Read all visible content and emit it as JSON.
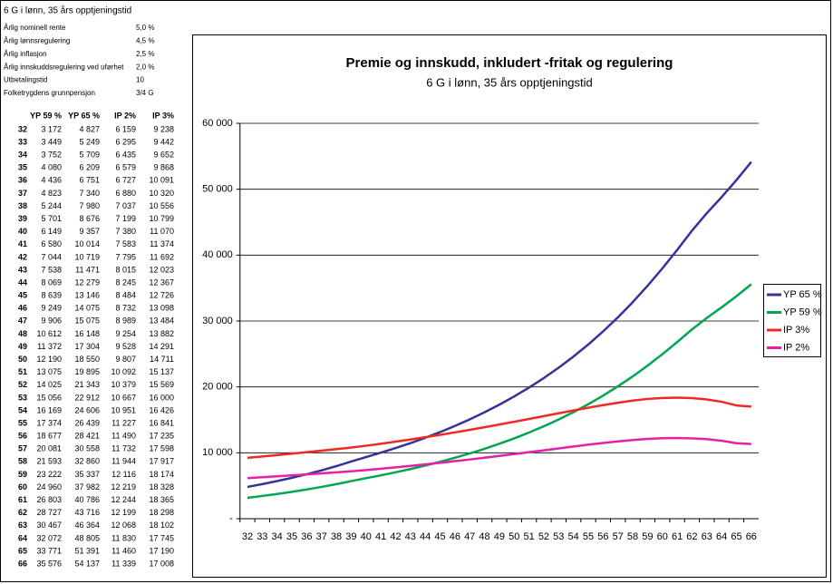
{
  "params": {
    "title": "6 G i lønn, 35 års opptjeningstid",
    "rows": [
      [
        "Årlig nominell rente",
        "5,0 %"
      ],
      [
        "Årlig lønnsregulering",
        "4,5 %"
      ],
      [
        "Årlig inflasjon",
        "2,5 %"
      ],
      [
        "Årlig innskuddsregulering ved uførhet",
        "2,0 %"
      ],
      [
        "Utbetalingstid",
        "10"
      ],
      [
        "Folketrygdens grunnpensjon",
        "3/4 G"
      ]
    ]
  },
  "table": {
    "header": [
      "YP 59 %",
      "YP 65 %",
      "IP 2%",
      "IP 3%"
    ],
    "rows": [
      [
        "32",
        "3 172",
        "4 827",
        "6 159",
        "9 238"
      ],
      [
        "33",
        "3 449",
        "5 249",
        "6 295",
        "9 442"
      ],
      [
        "34",
        "3 752",
        "5 709",
        "6 435",
        "9 652"
      ],
      [
        "35",
        "4 080",
        "6 209",
        "6 579",
        "9 868"
      ],
      [
        "36",
        "4 436",
        "6 751",
        "6 727",
        "10 091"
      ],
      [
        "37",
        "4 823",
        "7 340",
        "6 880",
        "10 320"
      ],
      [
        "38",
        "5 244",
        "7 980",
        "7 037",
        "10 556"
      ],
      [
        "39",
        "5 701",
        "8 676",
        "7 199",
        "10 799"
      ],
      [
        "40",
        "6 149",
        "9 357",
        "7 380",
        "11 070"
      ],
      [
        "41",
        "6 580",
        "10 014",
        "7 583",
        "11 374"
      ],
      [
        "42",
        "7 044",
        "10 719",
        "7 795",
        "11 692"
      ],
      [
        "43",
        "7 538",
        "11 471",
        "8 015",
        "12 023"
      ],
      [
        "44",
        "8 069",
        "12 279",
        "8 245",
        "12 367"
      ],
      [
        "45",
        "8 639",
        "13 146",
        "8 484",
        "12 726"
      ],
      [
        "46",
        "9 249",
        "14 075",
        "8 732",
        "13 098"
      ],
      [
        "47",
        "9 906",
        "15 075",
        "8 989",
        "13 484"
      ],
      [
        "48",
        "10 612",
        "16 148",
        "9 254",
        "13 882"
      ],
      [
        "49",
        "11 372",
        "17 304",
        "9 528",
        "14 291"
      ],
      [
        "50",
        "12 190",
        "18 550",
        "9 807",
        "14 711"
      ],
      [
        "51",
        "13 075",
        "19 895",
        "10 092",
        "15 137"
      ],
      [
        "52",
        "14 025",
        "21 343",
        "10 379",
        "15 569"
      ],
      [
        "53",
        "15 056",
        "22 912",
        "10 667",
        "16 000"
      ],
      [
        "54",
        "16 169",
        "24 606",
        "10 951",
        "16 426"
      ],
      [
        "55",
        "17 374",
        "26 439",
        "11 227",
        "16 841"
      ],
      [
        "56",
        "18 677",
        "28 421",
        "11 490",
        "17 235"
      ],
      [
        "57",
        "20 081",
        "30 558",
        "11 732",
        "17 598"
      ],
      [
        "58",
        "21 593",
        "32 860",
        "11 944",
        "17 917"
      ],
      [
        "59",
        "23 222",
        "35 337",
        "12 116",
        "18 174"
      ],
      [
        "60",
        "24 960",
        "37 982",
        "12 219",
        "18 328"
      ],
      [
        "61",
        "26 803",
        "40 786",
        "12 244",
        "18 365"
      ],
      [
        "62",
        "28 727",
        "43 716",
        "12 199",
        "18 298"
      ],
      [
        "63",
        "30 467",
        "46 364",
        "12 068",
        "18 102"
      ],
      [
        "64",
        "32 072",
        "48 805",
        "11 830",
        "17 745"
      ],
      [
        "65",
        "33 771",
        "51 391",
        "11 460",
        "17 190"
      ],
      [
        "66",
        "35 576",
        "54 137",
        "11 339",
        "17 008"
      ]
    ]
  },
  "chart_data": {
    "type": "line",
    "title": "Premie og innskudd, inkludert -fritak og regulering",
    "subtitle": "6 G i lønn, 35 års opptjeningstid",
    "categories": [
      "32",
      "33",
      "34",
      "35",
      "36",
      "37",
      "38",
      "39",
      "40",
      "41",
      "42",
      "43",
      "44",
      "45",
      "46",
      "47",
      "48",
      "49",
      "50",
      "51",
      "52",
      "53",
      "54",
      "55",
      "56",
      "57",
      "58",
      "59",
      "60",
      "61",
      "62",
      "63",
      "64",
      "65",
      "66"
    ],
    "ylim": [
      0,
      60000
    ],
    "yticks": [
      {
        "value": 0,
        "label": "-"
      },
      {
        "value": 10000,
        "label": "10 000"
      },
      {
        "value": 20000,
        "label": "20 000"
      },
      {
        "value": 30000,
        "label": "30 000"
      },
      {
        "value": 40000,
        "label": "40 000"
      },
      {
        "value": 50000,
        "label": "50 000"
      },
      {
        "value": 60000,
        "label": "60 000"
      }
    ],
    "grid": true,
    "legend": "right",
    "series": [
      {
        "name": "YP 65 %",
        "color": "#333399",
        "values": [
          4827,
          5249,
          5709,
          6209,
          6751,
          7340,
          7980,
          8676,
          9357,
          10014,
          10719,
          11471,
          12279,
          13146,
          14075,
          15075,
          16148,
          17304,
          18550,
          19895,
          21343,
          22912,
          24606,
          26439,
          28421,
          30558,
          32860,
          35337,
          37982,
          40786,
          43716,
          46364,
          48805,
          51391,
          54137
        ]
      },
      {
        "name": "YP 59 %",
        "color": "#00a651",
        "values": [
          3172,
          3449,
          3752,
          4080,
          4436,
          4823,
          5244,
          5701,
          6149,
          6580,
          7044,
          7538,
          8069,
          8639,
          9249,
          9906,
          10612,
          11372,
          12190,
          13075,
          14025,
          15056,
          16169,
          17374,
          18677,
          20081,
          21593,
          23222,
          24960,
          26803,
          28727,
          30467,
          32072,
          33771,
          35576
        ]
      },
      {
        "name": "IP 3%",
        "color": "#ee2a24",
        "values": [
          9238,
          9442,
          9652,
          9868,
          10091,
          10320,
          10556,
          10799,
          11070,
          11374,
          11692,
          12023,
          12367,
          12726,
          13098,
          13484,
          13882,
          14291,
          14711,
          15137,
          15569,
          16000,
          16426,
          16841,
          17235,
          17598,
          17917,
          18174,
          18328,
          18365,
          18298,
          18102,
          17745,
          17190,
          17008
        ]
      },
      {
        "name": "IP 2%",
        "color": "#e620a8",
        "values": [
          6159,
          6295,
          6435,
          6579,
          6727,
          6880,
          7037,
          7199,
          7380,
          7583,
          7795,
          8015,
          8245,
          8484,
          8732,
          8989,
          9254,
          9528,
          9807,
          10092,
          10379,
          10667,
          10951,
          11227,
          11490,
          11732,
          11944,
          12116,
          12219,
          12244,
          12199,
          12068,
          11830,
          11460,
          11339
        ]
      }
    ]
  }
}
